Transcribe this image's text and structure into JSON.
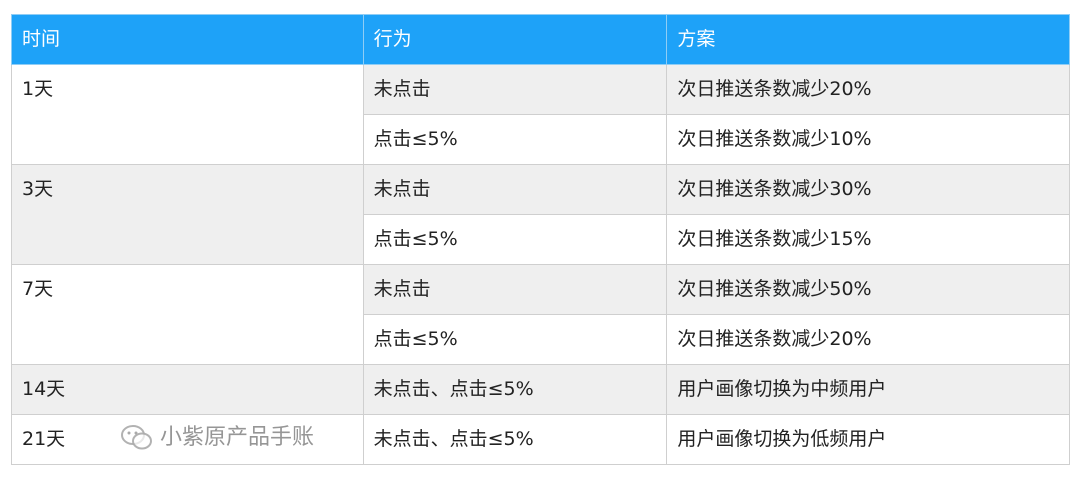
{
  "table": {
    "headers": [
      "时间",
      "行为",
      "方案"
    ],
    "groups": [
      {
        "time": "1天",
        "rows": [
          {
            "behavior": "未点击",
            "plan": "次日推送条数减少20%"
          },
          {
            "behavior": "点击≤5%",
            "plan": "次日推送条数减少10%"
          }
        ]
      },
      {
        "time": "3天",
        "rows": [
          {
            "behavior": "未点击",
            "plan": "次日推送条数减少30%"
          },
          {
            "behavior": "点击≤5%",
            "plan": "次日推送条数减少15%"
          }
        ]
      },
      {
        "time": "7天",
        "rows": [
          {
            "behavior": "未点击",
            "plan": "次日推送条数减少50%"
          },
          {
            "behavior": "点击≤5%",
            "plan": "次日推送条数减少20%"
          }
        ]
      },
      {
        "time": "14天",
        "rows": [
          {
            "behavior": "未点击、点击≤5%",
            "plan": "用户画像切换为中频用户"
          }
        ]
      },
      {
        "time": "21天",
        "rows": [
          {
            "behavior": "未点击、点击≤5%",
            "plan": "用户画像切换为低频用户"
          }
        ]
      }
    ],
    "header_color": "#1ea2f8",
    "stripe_color": "#efefef"
  },
  "watermark": {
    "icon": "wechat-icon",
    "text": "小紫原产品手账"
  }
}
